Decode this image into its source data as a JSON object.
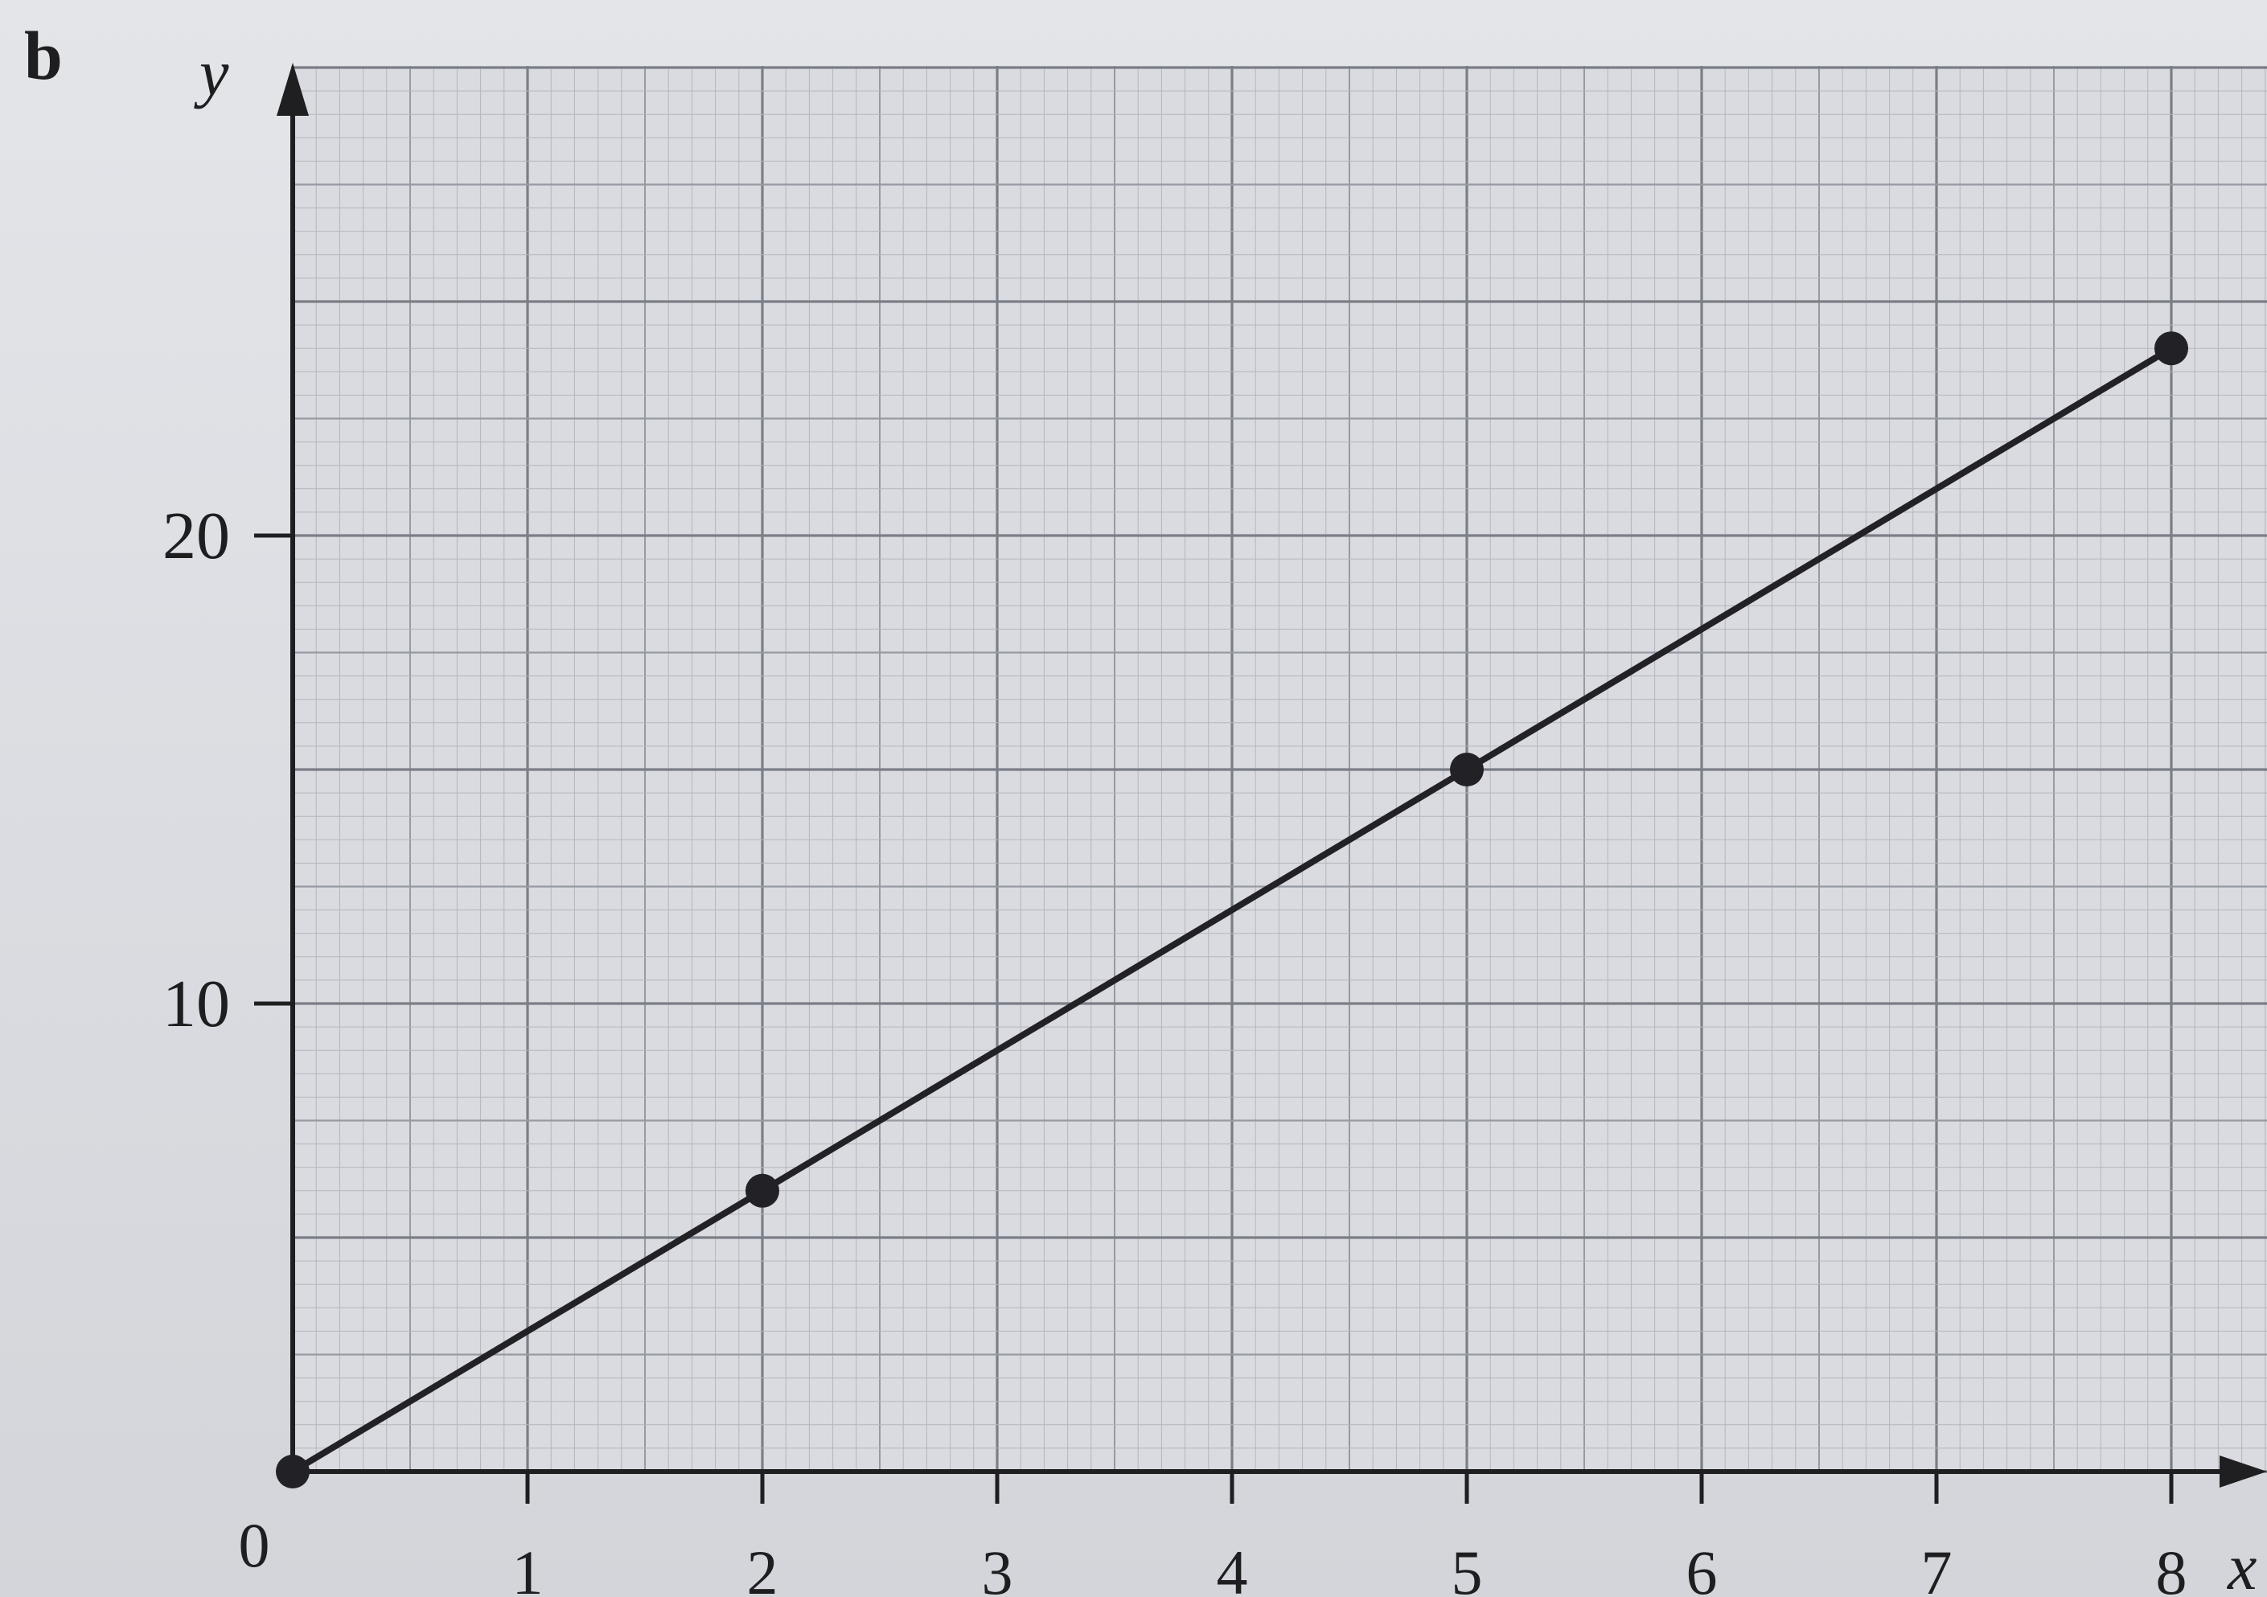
{
  "part_label": "b",
  "colors": {
    "paper": "#dcdee3",
    "grid_fine": "#b3b6bd",
    "grid_mid": "#969aa2",
    "grid_major": "#7a7e86",
    "axis": "#1f1f22",
    "line": "#222226",
    "text": "#1e1e20"
  },
  "chart_data": {
    "type": "line",
    "xlabel": "x",
    "ylabel": "y",
    "origin_label": "0",
    "x_ticks": [
      "1",
      "2",
      "3",
      "4",
      "5",
      "6",
      "7",
      "8"
    ],
    "y_ticks": [
      "10",
      "20"
    ],
    "xlim": [
      0,
      8.4
    ],
    "ylim": [
      0,
      30
    ],
    "grid": true,
    "series": [
      {
        "x": [
          0,
          2,
          5,
          8
        ],
        "y": [
          0,
          6,
          15,
          24
        ],
        "markers": true
      }
    ]
  }
}
